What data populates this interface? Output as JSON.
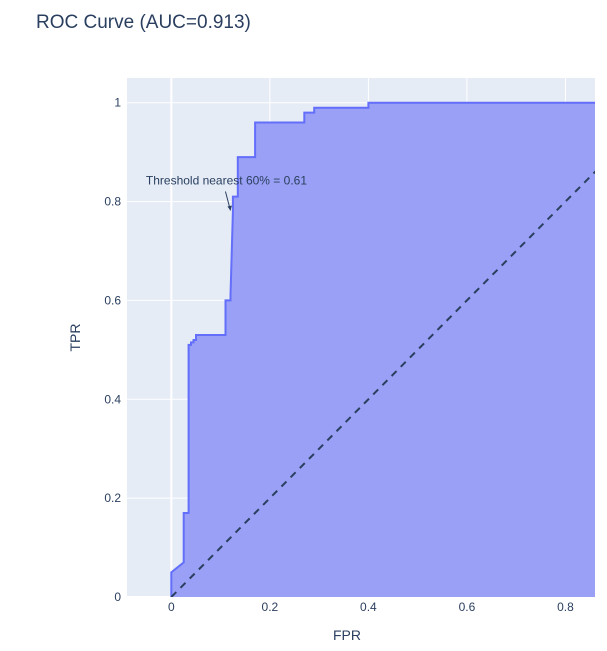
{
  "chart_data": {
    "type": "area",
    "title": "ROC Curve (AUC=0.913)",
    "xlabel": "FPR",
    "ylabel": "TPR",
    "xlim": [
      -0.09,
      0.86
    ],
    "ylim": [
      0,
      1.05
    ],
    "grid": true,
    "x_ticks": [
      0,
      0.2,
      0.4,
      0.6,
      0.8
    ],
    "x_tick_labels": [
      "0",
      "0.2",
      "0.4",
      "0.6",
      "0.8"
    ],
    "y_ticks": [
      0,
      0.2,
      0.4,
      0.6,
      0.8,
      1
    ],
    "y_tick_labels": [
      "0",
      "0.2",
      "0.4",
      "0.6",
      "0.8",
      "1"
    ],
    "series": [
      {
        "x": [
          0,
          0,
          0.025,
          0.025,
          0.035,
          0.035,
          0.04,
          0.04,
          0.045,
          0.045,
          0.05,
          0.05,
          0.11,
          0.11,
          0.12,
          0.12,
          0.125,
          0.125,
          0.135,
          0.135,
          0.14,
          0.14,
          0.17,
          0.17,
          0.27,
          0.27,
          0.29,
          0.29,
          0.4,
          0.4,
          0.86
        ],
        "y": [
          0,
          0.05,
          0.07,
          0.17,
          0.17,
          0.51,
          0.51,
          0.515,
          0.515,
          0.52,
          0.52,
          0.53,
          0.53,
          0.6,
          0.6,
          0.61,
          0.78,
          0.81,
          0.81,
          0.89,
          0.89,
          0.89,
          0.89,
          0.96,
          0.96,
          0.98,
          0.98,
          0.99,
          0.99,
          1.0,
          1.0
        ],
        "line_color": "#636efa",
        "fill_color": "#99a0f5"
      },
      {
        "x": [
          0,
          1
        ],
        "y": [
          0,
          1
        ],
        "line_color": "#2a3f5f",
        "dash": true
      }
    ],
    "annotations": [
      {
        "text": "Threshold nearest 60% = 0.61",
        "x": 0.12,
        "y": 0.78
      }
    ],
    "colors": {
      "plot_bg": "#e5ecf6",
      "grid": "#ffffff",
      "text": "#2a3f5f"
    }
  }
}
